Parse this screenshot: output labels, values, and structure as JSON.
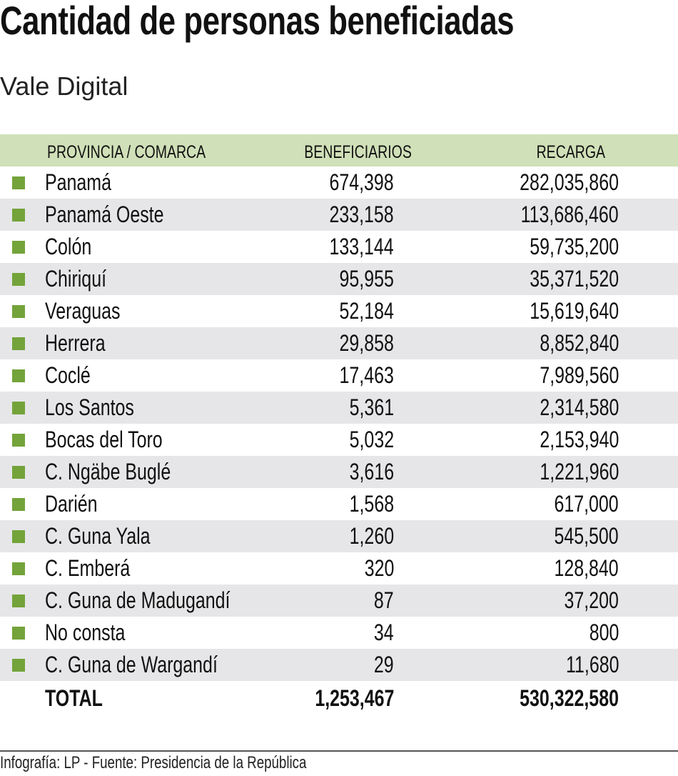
{
  "chart_data": {
    "type": "table",
    "title": "Cantidad de personas beneficiadas",
    "subtitle": "Vale Digital",
    "columns": [
      "PROVINCIA / COMARCA",
      "BENEFICIARIOS",
      "RECARGA"
    ],
    "rows": [
      [
        "Panamá",
        "674,398",
        "282,035,860"
      ],
      [
        "Panamá Oeste",
        "233,158",
        "113,686,460"
      ],
      [
        "Colón",
        "133,144",
        "59,735,200"
      ],
      [
        "Chiriquí",
        "95,955",
        "35,371,520"
      ],
      [
        "Veraguas",
        "52,184",
        "15,619,640"
      ],
      [
        "Herrera",
        "29,858",
        "8,852,840"
      ],
      [
        "Coclé",
        "17,463",
        "7,989,560"
      ],
      [
        "Los Santos",
        "5,361",
        "2,314,580"
      ],
      [
        "Bocas del Toro",
        "5,032",
        "2,153,940"
      ],
      [
        "C. Ngäbe Buglé",
        "3,616",
        "1,221,960"
      ],
      [
        "Darién",
        "1,568",
        "617,000"
      ],
      [
        "C. Guna Yala",
        "1,260",
        "545,500"
      ],
      [
        "C. Emberá",
        "320",
        "128,840"
      ],
      [
        "C. Guna de Madugandí",
        "87",
        "37,200"
      ],
      [
        "No consta",
        "34",
        "800"
      ],
      [
        "C. Guna de Wargandí",
        "29",
        "11,680"
      ]
    ],
    "total": [
      "TOTAL",
      "1,253,467",
      "530,322,580"
    ],
    "colors": {
      "header_bg": "#d0e0b8",
      "marker": "#73a33a",
      "alt_row": "#e6e6e8"
    }
  },
  "footer": "Infografía: LP - Fuente: Presidencia de la República"
}
